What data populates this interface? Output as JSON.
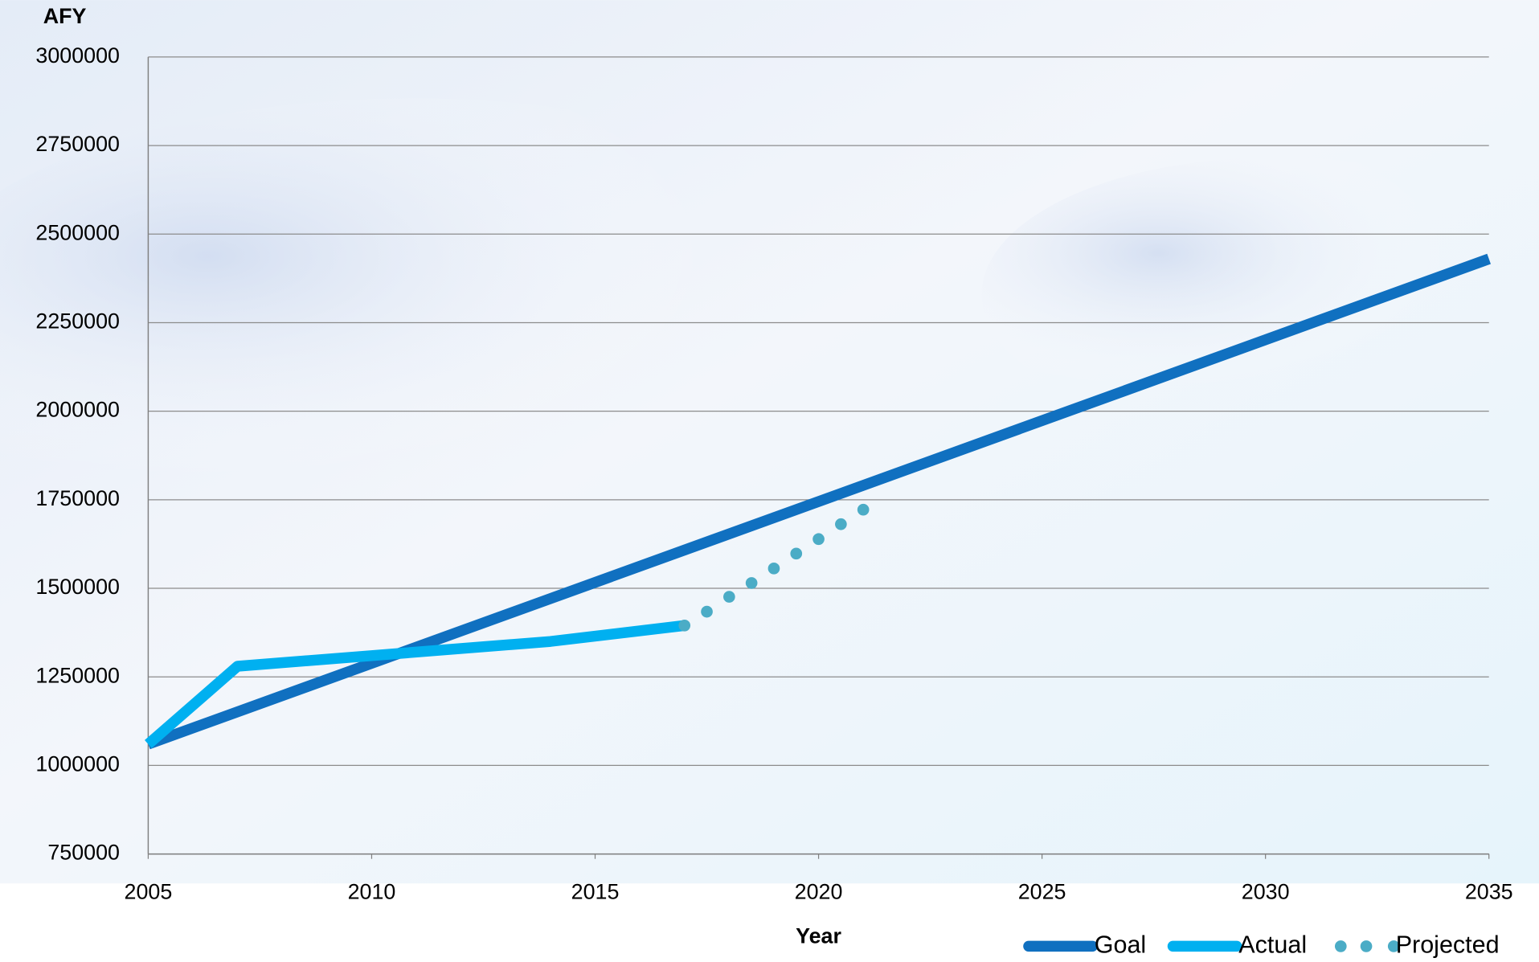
{
  "chart_data": {
    "type": "line",
    "y_label": "AFY",
    "x_label": "Year",
    "xlim": [
      2005,
      2035
    ],
    "xticks": [
      2005,
      2010,
      2015,
      2020,
      2025,
      2030,
      2035
    ],
    "ylim": [
      750000,
      3000000
    ],
    "yticks": [
      750000,
      1000000,
      1250000,
      1500000,
      1750000,
      2000000,
      2250000,
      2500000,
      2750000,
      3000000
    ],
    "grid": true,
    "legend": "bottom-right",
    "series": [
      {
        "name": "Goal",
        "color": "#1070c0",
        "style": "solid",
        "x": [
          2005,
          2035
        ],
        "values": [
          1060000,
          2430000
        ]
      },
      {
        "name": "Actual",
        "color": "#00b0f0",
        "style": "solid",
        "x": [
          2005,
          2007,
          2010,
          2014,
          2017
        ],
        "values": [
          1060000,
          1280000,
          1310000,
          1350000,
          1395000
        ]
      },
      {
        "name": "Projected",
        "color": "#4bacc6",
        "style": "dotted",
        "x": [
          2017,
          2017.5,
          2018,
          2018.5,
          2019,
          2019.5,
          2020,
          2020.5,
          2021
        ],
        "values": [
          1395000,
          1434000,
          1476000,
          1515000,
          1556000,
          1598000,
          1639000,
          1681000,
          1722000
        ]
      }
    ]
  }
}
